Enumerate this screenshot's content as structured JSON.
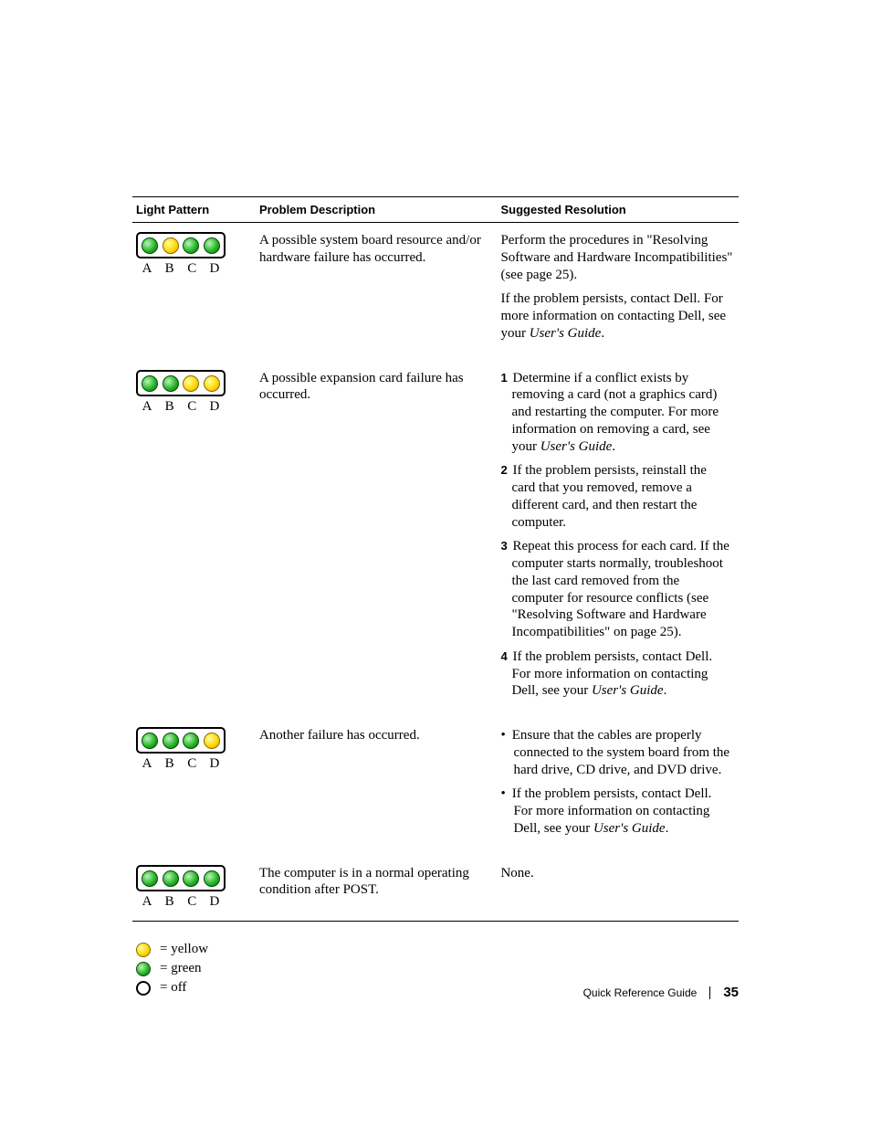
{
  "headers": {
    "light_pattern": "Light Pattern",
    "problem_description": "Problem Description",
    "suggested_resolution": "Suggested Resolution"
  },
  "led_labels": [
    "A",
    "B",
    "C",
    "D"
  ],
  "led_colors": {
    "green": "#1fae1f",
    "yellow": "#ffd400",
    "off": "#ffffff"
  },
  "rows": [
    {
      "leds": [
        "green",
        "yellow",
        "green",
        "green"
      ],
      "problem": "A possible system board resource and/or hardware failure has occurred.",
      "resolution_type": "paragraphs",
      "paragraphs": [
        "Perform the procedures in \"Resolving Software and Hardware Incompatibilities\" (see page 25).",
        "If the problem persists, contact Dell. For more information on contacting Dell, see your <em class=\"ug\">User's Guide</em>."
      ]
    },
    {
      "leds": [
        "green",
        "green",
        "yellow",
        "yellow"
      ],
      "problem": "A possible expansion card failure has occurred.",
      "resolution_type": "ordered",
      "items": [
        "Determine if a conflict exists by removing a card (not a graphics card) and restarting the computer. For more information on removing a card, see your <em class=\"ug\">User's Guide</em>.",
        "If the problem persists, reinstall the card that you removed, remove a different card, and then restart the computer.",
        "Repeat this process for each card. If the computer starts normally, troubleshoot the last card removed from the computer for resource conflicts (see \"Resolving Software and Hardware Incompatibilities\" on page 25).",
        "If the problem persists, contact Dell. For more information on contacting Dell, see your <em class=\"ug\">User's Guide</em>."
      ]
    },
    {
      "leds": [
        "green",
        "green",
        "green",
        "yellow"
      ],
      "problem": "Another failure has occurred.",
      "resolution_type": "bullets",
      "items": [
        "Ensure that the cables are properly connected to the system board from the hard drive, CD drive, and DVD drive.",
        "If the problem persists, contact Dell. For more information on contacting Dell, see your <em class=\"ug\">User's Guide</em>."
      ]
    },
    {
      "leds": [
        "green",
        "green",
        "green",
        "green"
      ],
      "problem": "The computer is in a normal operating condition after POST.",
      "resolution_type": "plain",
      "text": "None."
    }
  ],
  "legend": [
    {
      "type": "yellow",
      "label": "= yellow"
    },
    {
      "type": "green",
      "label": "= green"
    },
    {
      "type": "off",
      "label": "= off"
    }
  ],
  "footer": {
    "title": "Quick Reference Guide",
    "page": "35"
  }
}
